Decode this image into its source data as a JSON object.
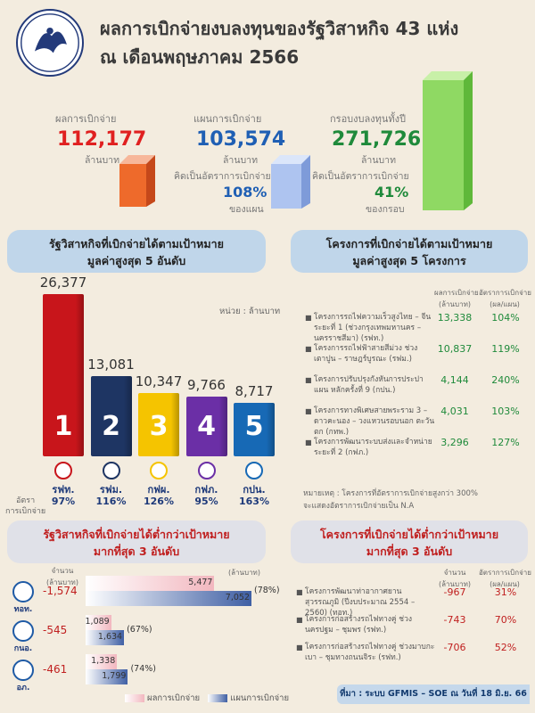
{
  "header": {
    "title_line1": "ผลการเบิกจ่ายงบลงทุนของรัฐวิสาหกิจ 43 แห่ง",
    "title_line2": "ณ เดือนพฤษภาคม 2566"
  },
  "kpis": [
    {
      "label": "ผลการเบิกจ่าย",
      "value": "112,177",
      "unit": "ล้านบาท",
      "color": "#e02020"
    },
    {
      "label": "แผนการเบิกจ่าย",
      "value": "103,574",
      "unit": "ล้านบาท",
      "rate_label": "คิดเป็นอัตราการเบิกจ่าย",
      "rate": "108%",
      "rate_unit": "ของแผน",
      "color": "#1f5fb4"
    },
    {
      "label": "กรอบงบลงทุนทั้งปี",
      "value": "271,726",
      "unit": "ล้านบาท",
      "rate_label": "คิดเป็นอัตราการเบิกจ่าย",
      "rate": "41%",
      "rate_unit": "ของกรอบ",
      "color": "#1f8a3b"
    }
  ],
  "left_top": {
    "banner_l1": "รัฐวิสาหกิจที่เบิกจ่ายได้ตามเป้าหมาย",
    "banner_l2": "มูลค่าสูงสุด 5 อันดับ",
    "unit_note": "หน่วย : ล้านบาท",
    "rate_label_1": "อัตรา",
    "rate_label_2": "การเบิกจ่าย"
  },
  "right_top": {
    "banner_l1": "โครงการที่เบิกจ่ายได้ตามเป้าหมาย",
    "banner_l2": "มูลค่าสูงสุด 5 โครงการ",
    "col1_l1": "ผลการเบิกจ่าย",
    "col1_l2": "(ล้านบาท)",
    "col2_l1": "อัตราการเบิกจ่าย",
    "col2_l2": "(ผล/แผน)",
    "projects": [
      {
        "name": "โครงการรถไฟความเร็วสูงไทย – จีน ระยะที่ 1 (ช่วงกรุงเทพมหานคร – นครราชสีมา) (รฟท.)",
        "value": "13,338",
        "rate": "104%"
      },
      {
        "name": "โครงการรถไฟฟ้าสายสีม่วง ช่วงเตาปูน – ราษฎร์บูรณะ (รฟม.)",
        "value": "10,837",
        "rate": "119%"
      },
      {
        "name": "โครงการปรับปรุงกังหันการประปาแผน หลักครั้งที่ 9 (กปน.)",
        "value": "4,144",
        "rate": "240%"
      },
      {
        "name": "โครงการทางพิเศษสายพระราม 3 – ดาวคะนอง – วงแหวนรอบนอก ตะวันตก (กทพ.)",
        "value": "4,031",
        "rate": "103%"
      },
      {
        "name": "โครงการพัฒนาระบบส่งและจำหน่าย ระยะที่ 2 (กฟภ.)",
        "value": "3,296",
        "rate": "127%"
      }
    ],
    "note_l1": "หมายเหตุ : โครงการที่อัตราการเบิกจ่ายสูงกว่า 300%",
    "note_l2": "จะแสดงอัตราการเบิกจ่ายเป็น N.A"
  },
  "left_bottom": {
    "banner_l1": "รัฐวิสาหกิจที่เบิกจ่ายได้ต่ำกว่าเป้าหมาย",
    "banner_l2": "มากที่สุด 3 อันดับ",
    "col_amount_l1": "จำนวน",
    "col_amount_l2": "(ล้านบาท)",
    "col_unit": "(ล้านบาท)",
    "legend_actual": "ผลการเบิกจ่าย",
    "legend_plan": "แผนการเบิกจ่าย"
  },
  "right_bottom": {
    "banner_l1": "โครงการที่เบิกจ่ายได้ต่ำกว่าเป้าหมาย",
    "banner_l2": "มากที่สุด 3 อันดับ",
    "col1_l1": "จำนวน",
    "col1_l2": "(ล้านบาท)",
    "col2_l1": "อัตราการเบิกจ่าย",
    "col2_l2": "(ผล/แผน)",
    "projects": [
      {
        "name": "โครงการพัฒนาท่าอากาศยานสุวรรณภูมิ (ปีงบประมาณ 2554 – 2560) (ทอท.)",
        "value": "-967",
        "rate": "31%"
      },
      {
        "name": "โครงการก่อสร้างรถไฟทางคู่ ช่วงนครปฐม – ชุมพร (รฟท.)",
        "value": "-743",
        "rate": "70%"
      },
      {
        "name": "โครงการก่อสร้างรถไฟทางคู่ ช่วงมาบกะเบา – ชุมทางถนนจิระ (รฟท.)",
        "value": "-706",
        "rate": "52%"
      }
    ]
  },
  "footer": "ที่มา : ระบบ GFMIS – SOE ณ วันที่ 18 มิ.ย. 66",
  "chart_data": [
    {
      "type": "bar",
      "categories": [
        "รฟท.",
        "รฟม.",
        "กฟผ.",
        "กฟภ.",
        "กปน."
      ],
      "values": [
        26377,
        13081,
        10347,
        9766,
        8717
      ],
      "value_labels": [
        "26,377",
        "13,081",
        "10,347",
        "9,766",
        "8,717"
      ],
      "rates": [
        "97%",
        "116%",
        "126%",
        "95%",
        "163%"
      ],
      "ranks": [
        "1",
        "2",
        "3",
        "4",
        "5"
      ],
      "colors": [
        "#c8151b",
        "#1e3563",
        "#f5c400",
        "#6b2fa6",
        "#1769b5"
      ],
      "ylim": [
        0,
        27500
      ]
    },
    {
      "type": "bar",
      "orientation": "horizontal",
      "categories": [
        "ทอท.",
        "กนอ.",
        "อภ."
      ],
      "gaps": [
        "-1,574",
        "-545",
        "-461"
      ],
      "series": [
        {
          "name": "ผลการเบิกจ่าย",
          "values": [
            5477,
            1089,
            1338
          ],
          "labels": [
            "5,477",
            "1,089",
            "1,338"
          ]
        },
        {
          "name": "แผนการเบิกจ่าย",
          "values": [
            7052,
            1634,
            1799
          ],
          "labels": [
            "7,052",
            "1,634",
            "1,799"
          ]
        }
      ],
      "rates": [
        "(78%)",
        "(67%)",
        "(74%)"
      ],
      "xlim": [
        0,
        7052
      ]
    }
  ]
}
